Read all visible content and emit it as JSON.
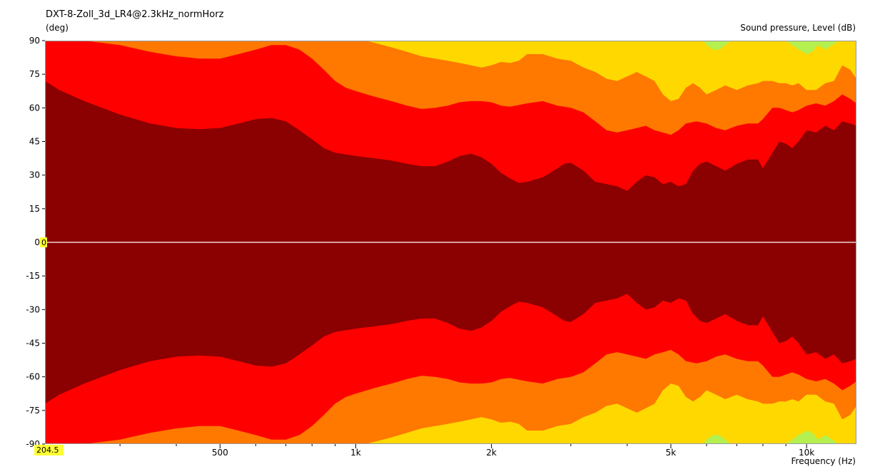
{
  "chart_data": {
    "type": "area",
    "title": "DXT-8-Zoll_3d_LR4@2.3kHz_normHorz",
    "ylabel": "(deg)",
    "zlabel": "Sound pressure, Level  (dB)",
    "xlabel": "Frequency  (Hz)",
    "x_scale": "log",
    "xlim": [
      204.5,
      12900
    ],
    "ylim": [
      -90,
      90
    ],
    "y_ticks": [
      "90",
      "75",
      "60",
      "45",
      "30",
      "15",
      "0",
      "-15",
      "-30",
      "-45",
      "-60",
      "-75",
      "-90"
    ],
    "x_ticks": [
      {
        "value": 500,
        "label": "500"
      },
      {
        "value": 1000,
        "label": "1k"
      },
      {
        "value": 2000,
        "label": "2k"
      },
      {
        "value": 5000,
        "label": "5k"
      },
      {
        "value": 10000,
        "label": "10k"
      }
    ],
    "x_minor_ticks": [
      300,
      400,
      600,
      700,
      800,
      900,
      3000,
      4000,
      6000,
      7000,
      8000,
      9000
    ],
    "y_cursor_label": "0",
    "x_cursor_label": "204.5",
    "legend": "none",
    "symmetric": true,
    "colors": {
      "band_0": "#8b0000",
      "band_1": "#ff0000",
      "band_2": "#ff7800",
      "band_3": "#ffd800",
      "band_4": "#b4f050",
      "cursor_highlight": "#ffff33"
    },
    "contours": [
      {
        "band": "band_0",
        "boundary_deg": [
          [
            204.5,
            72
          ],
          [
            220,
            68
          ],
          [
            250,
            63
          ],
          [
            300,
            57
          ],
          [
            350,
            53
          ],
          [
            400,
            51
          ],
          [
            450,
            50.5
          ],
          [
            500,
            51
          ],
          [
            550,
            53
          ],
          [
            600,
            55
          ],
          [
            650,
            55.5
          ],
          [
            700,
            54
          ],
          [
            750,
            50
          ],
          [
            800,
            46
          ],
          [
            850,
            42
          ],
          [
            900,
            40
          ],
          [
            1000,
            38.5
          ],
          [
            1100,
            37.5
          ],
          [
            1200,
            36.5
          ],
          [
            1300,
            35
          ],
          [
            1400,
            34
          ],
          [
            1500,
            34
          ],
          [
            1600,
            36
          ],
          [
            1700,
            38.5
          ],
          [
            1800,
            39.5
          ],
          [
            1900,
            38
          ],
          [
            2000,
            35
          ],
          [
            2100,
            31
          ],
          [
            2200,
            28.5
          ],
          [
            2300,
            26.5
          ],
          [
            2400,
            27
          ],
          [
            2600,
            29
          ],
          [
            2800,
            33
          ],
          [
            2900,
            35
          ],
          [
            3000,
            35.5
          ],
          [
            3200,
            32
          ],
          [
            3400,
            27
          ],
          [
            3600,
            26
          ],
          [
            3800,
            25
          ],
          [
            4000,
            23
          ],
          [
            4200,
            27
          ],
          [
            4400,
            30
          ],
          [
            4600,
            29
          ],
          [
            4800,
            26
          ],
          [
            5000,
            27
          ],
          [
            5200,
            25
          ],
          [
            5400,
            26
          ],
          [
            5600,
            32
          ],
          [
            5800,
            35
          ],
          [
            6000,
            36
          ],
          [
            6300,
            34
          ],
          [
            6600,
            32
          ],
          [
            7000,
            35
          ],
          [
            7400,
            37
          ],
          [
            7800,
            37
          ],
          [
            8000,
            33
          ],
          [
            8400,
            40
          ],
          [
            8700,
            45
          ],
          [
            9000,
            44
          ],
          [
            9300,
            42
          ],
          [
            9600,
            45
          ],
          [
            10000,
            50
          ],
          [
            10500,
            49
          ],
          [
            11000,
            52
          ],
          [
            11500,
            50
          ],
          [
            12000,
            54
          ],
          [
            12500,
            53
          ],
          [
            12900,
            52
          ]
        ]
      },
      {
        "band": "band_1",
        "boundary_deg": [
          [
            204.5,
            90
          ],
          [
            230,
            90
          ],
          [
            250,
            90
          ],
          [
            300,
            88
          ],
          [
            350,
            85
          ],
          [
            400,
            83
          ],
          [
            450,
            82
          ],
          [
            500,
            82
          ],
          [
            550,
            84
          ],
          [
            600,
            86
          ],
          [
            650,
            88
          ],
          [
            700,
            88
          ],
          [
            750,
            86
          ],
          [
            800,
            82
          ],
          [
            850,
            77
          ],
          [
            900,
            72
          ],
          [
            950,
            69
          ],
          [
            1000,
            67.5
          ],
          [
            1100,
            65
          ],
          [
            1200,
            63
          ],
          [
            1300,
            61
          ],
          [
            1400,
            59.5
          ],
          [
            1500,
            60
          ],
          [
            1600,
            61
          ],
          [
            1700,
            62.5
          ],
          [
            1800,
            63
          ],
          [
            1900,
            63
          ],
          [
            2000,
            62.5
          ],
          [
            2100,
            61
          ],
          [
            2200,
            60.5
          ],
          [
            2400,
            62
          ],
          [
            2600,
            63
          ],
          [
            2800,
            61
          ],
          [
            3000,
            60
          ],
          [
            3200,
            58
          ],
          [
            3400,
            54
          ],
          [
            3600,
            50
          ],
          [
            3800,
            49
          ],
          [
            4000,
            50
          ],
          [
            4200,
            51
          ],
          [
            4400,
            52
          ],
          [
            4600,
            50
          ],
          [
            4800,
            49
          ],
          [
            5000,
            48
          ],
          [
            5200,
            50
          ],
          [
            5400,
            53
          ],
          [
            5700,
            54
          ],
          [
            6000,
            53
          ],
          [
            6300,
            51
          ],
          [
            6600,
            50
          ],
          [
            7000,
            52
          ],
          [
            7400,
            53
          ],
          [
            7800,
            53
          ],
          [
            8000,
            55
          ],
          [
            8400,
            60
          ],
          [
            8700,
            60
          ],
          [
            9000,
            59
          ],
          [
            9300,
            58
          ],
          [
            9600,
            59
          ],
          [
            10000,
            61
          ],
          [
            10500,
            62
          ],
          [
            11000,
            61
          ],
          [
            11500,
            63
          ],
          [
            12000,
            66
          ],
          [
            12500,
            64
          ],
          [
            12900,
            62
          ]
        ]
      },
      {
        "band": "band_2",
        "boundary_deg": [
          [
            204.5,
            90
          ],
          [
            900,
            90
          ],
          [
            1000,
            90
          ],
          [
            1050,
            90
          ],
          [
            1100,
            89
          ],
          [
            1200,
            87
          ],
          [
            1300,
            85
          ],
          [
            1400,
            83
          ],
          [
            1500,
            82
          ],
          [
            1600,
            81
          ],
          [
            1700,
            80
          ],
          [
            1800,
            79
          ],
          [
            1900,
            78
          ],
          [
            2000,
            79
          ],
          [
            2100,
            80.5
          ],
          [
            2200,
            80
          ],
          [
            2300,
            81
          ],
          [
            2400,
            84
          ],
          [
            2600,
            84
          ],
          [
            2800,
            82
          ],
          [
            3000,
            81
          ],
          [
            3200,
            78
          ],
          [
            3400,
            76
          ],
          [
            3600,
            73
          ],
          [
            3800,
            72
          ],
          [
            4000,
            74
          ],
          [
            4200,
            76
          ],
          [
            4400,
            74
          ],
          [
            4600,
            72
          ],
          [
            4800,
            66
          ],
          [
            5000,
            63
          ],
          [
            5200,
            64
          ],
          [
            5400,
            69
          ],
          [
            5600,
            71
          ],
          [
            5800,
            69
          ],
          [
            6000,
            66
          ],
          [
            6300,
            68
          ],
          [
            6600,
            70
          ],
          [
            7000,
            68
          ],
          [
            7400,
            70
          ],
          [
            7800,
            71
          ],
          [
            8000,
            72
          ],
          [
            8400,
            72
          ],
          [
            8700,
            71
          ],
          [
            9000,
            71
          ],
          [
            9300,
            70
          ],
          [
            9600,
            71
          ],
          [
            10000,
            68
          ],
          [
            10500,
            68
          ],
          [
            11000,
            71
          ],
          [
            11500,
            72
          ],
          [
            12000,
            79
          ],
          [
            12500,
            77
          ],
          [
            12900,
            73
          ]
        ]
      },
      {
        "band": "band_3",
        "boundary_deg": [
          [
            204.5,
            90
          ],
          [
            5900,
            90
          ],
          [
            6000,
            88
          ],
          [
            6200,
            86
          ],
          [
            6400,
            86
          ],
          [
            6600,
            88
          ],
          [
            6800,
            90
          ],
          [
            9000,
            90
          ],
          [
            9300,
            88
          ],
          [
            9600,
            86
          ],
          [
            10000,
            84
          ],
          [
            10300,
            85
          ],
          [
            10600,
            88
          ],
          [
            11000,
            86
          ],
          [
            11400,
            88
          ],
          [
            11800,
            90
          ],
          [
            12900,
            90
          ]
        ]
      }
    ]
  }
}
